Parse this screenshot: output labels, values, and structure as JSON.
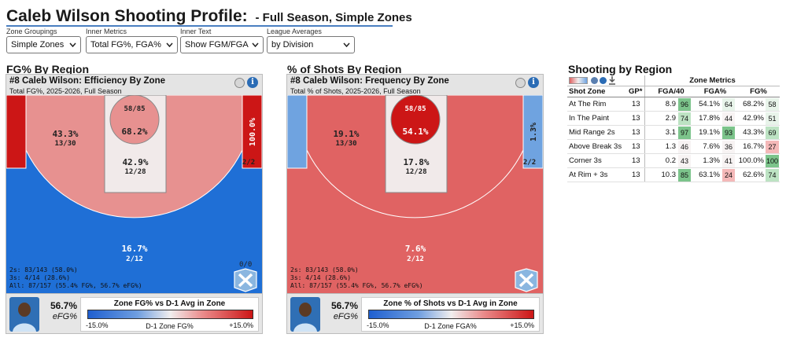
{
  "header": {
    "title": "Caleb Wilson Shooting Profile:",
    "subtitle": "- Full Season, Simple Zones"
  },
  "controls": [
    {
      "label": "Zone Groupings",
      "value": "Simple Zones"
    },
    {
      "label": "Inner Metrics",
      "value": "Total FG%, FGA%"
    },
    {
      "label": "Inner Text",
      "value": "Show FGM/FGA"
    },
    {
      "label": "League Averages",
      "value": "by Division"
    }
  ],
  "colors": {
    "red_dark": "#cc1616",
    "red_mid": "#e06363",
    "red_light": "#e79190",
    "paint_light": "#f1eaea",
    "blue": "#1f6fd6",
    "blue_light": "#6fa3e0",
    "accent": "#2b6cb5"
  },
  "efficiency_panel": {
    "section_title": "FG% By Region",
    "header": "#8 Caleb Wilson: Efficiency By Zone",
    "subheader": "Total FG%, 2025-2026, Full Season",
    "zones": {
      "rim_top": "58/85",
      "rim_pct": "68.2%",
      "paint_pct": "42.9%",
      "paint_frac": "12/28",
      "mid_pct": "43.3%",
      "mid_frac": "13/30",
      "corner_pct": "100.0%",
      "corner_frac": "2/2",
      "three_pct": "16.7%",
      "three_frac": "2/12"
    },
    "stats": [
      "2s: 83/143 (58.0%)",
      "3s: 4/14 (28.6%)",
      "All: 87/157 (55.4% FG%, 56.7% eFG%)"
    ],
    "stray_text": "0/0",
    "efg_value": "56.7%",
    "efg_label": "eFG%",
    "legend": {
      "title": "Zone FG% vs D-1 Avg in Zone",
      "min": "-15.0%",
      "max": "+15.0%",
      "axis_label": "D-1 Zone FG%"
    }
  },
  "frequency_panel": {
    "section_title": "% of Shots By Region",
    "header": "#8 Caleb Wilson: Frequency By Zone",
    "subheader": "Total % of Shots, 2025-2026, Full Season",
    "zones": {
      "rim_top": "58/85",
      "rim_pct": "54.1%",
      "paint_pct": "17.8%",
      "paint_frac": "12/28",
      "mid_pct": "19.1%",
      "mid_frac": "13/30",
      "corner_pct": "1.3%",
      "corner_frac": "2/2",
      "three_pct": "7.6%",
      "three_frac": "2/12"
    },
    "stats": [
      "2s: 83/143 (58.0%)",
      "3s: 4/14 (28.6%)",
      "All: 87/157 (55.4% FG%, 56.7% eFG%)"
    ],
    "efg_value": "56.7%",
    "efg_label": "eFG%",
    "legend": {
      "title": "Zone % of Shots vs D-1 Avg in Zone",
      "min": "-15.0%",
      "max": "+15.0%",
      "axis_label": "D-1 Zone FGA%"
    }
  },
  "table": {
    "title": "Shooting by Region",
    "group_header": "Zone Metrics",
    "columns": [
      "Shot Zone",
      "GP*",
      "FGA/40",
      "FGA%",
      "FG%"
    ],
    "rows": [
      {
        "zone": "At The Rim",
        "gp": "13",
        "fga40": "8.9",
        "fga40_pct": "96",
        "fga_pct": "54.1%",
        "fga_pct_rank": "64",
        "fg_pct": "68.2%",
        "fg_pct_rank": "58"
      },
      {
        "zone": "In The Paint",
        "gp": "13",
        "fga40": "2.9",
        "fga40_pct": "74",
        "fga_pct": "17.8%",
        "fga_pct_rank": "44",
        "fg_pct": "42.9%",
        "fg_pct_rank": "51"
      },
      {
        "zone": "Mid Range 2s",
        "gp": "13",
        "fga40": "3.1",
        "fga40_pct": "97",
        "fga_pct": "19.1%",
        "fga_pct_rank": "93",
        "fg_pct": "43.3%",
        "fg_pct_rank": "69"
      },
      {
        "zone": "Above Break 3s",
        "gp": "13",
        "fga40": "1.3",
        "fga40_pct": "46",
        "fga_pct": "7.6%",
        "fga_pct_rank": "36",
        "fg_pct": "16.7%",
        "fg_pct_rank": "27"
      },
      {
        "zone": "Corner 3s",
        "gp": "13",
        "fga40": "0.2",
        "fga40_pct": "43",
        "fga_pct": "1.3%",
        "fga_pct_rank": "41",
        "fg_pct": "100.0%",
        "fg_pct_rank": "100"
      },
      {
        "zone": "At Rim + 3s",
        "gp": "13",
        "fga40": "10.3",
        "fga40_pct": "85",
        "fga_pct": "63.1%",
        "fga_pct_rank": "24",
        "fg_pct": "62.6%",
        "fg_pct_rank": "74"
      }
    ]
  }
}
